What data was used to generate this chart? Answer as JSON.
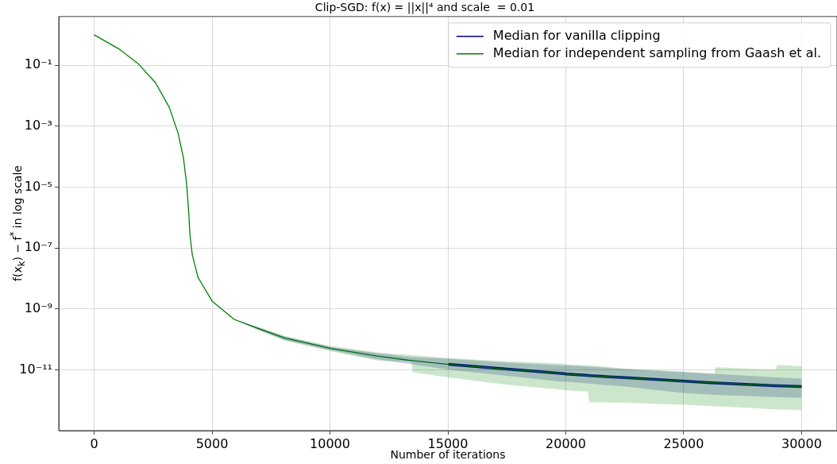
{
  "chart_data": {
    "type": "line",
    "title": "Clip-SGD: f(x) = ||x||⁴ and scale  = 0.01",
    "xlabel": "Number of iterations",
    "ylabel": "f(x$_{k}$) − f$^{*}$ in log scale",
    "x": [
      0,
      1040,
      1880,
      2600,
      3190,
      3560,
      3790,
      3920,
      4010,
      4060,
      4160,
      4400,
      5000,
      5940,
      7000,
      8070,
      10040,
      12000,
      13460,
      13500,
      15020,
      17500,
      19830,
      20030,
      20940,
      21000,
      22500,
      25030,
      26300,
      26350,
      28900,
      28950,
      30000
    ],
    "series": [
      {
        "name": "Median for vanilla clipping",
        "color": "#00008b",
        "values": [
          null,
          null,
          null,
          null,
          null,
          null,
          null,
          null,
          null,
          null,
          null,
          null,
          null,
          null,
          null,
          null,
          null,
          null,
          null,
          null,
          1.5e-11,
          1.05e-11,
          7.6e-12,
          7.2e-12,
          6.5e-12,
          6.4e-12,
          5.5e-12,
          4.2e-12,
          3.7e-12,
          3.7e-12,
          3e-12,
          3e-12,
          2.8e-12
        ],
        "lower": [
          null,
          null,
          null,
          null,
          null,
          null,
          null,
          null,
          null,
          null,
          null,
          null,
          null,
          4.5e-10,
          2e-10,
          9.5e-11,
          4.4e-11,
          2.2e-11,
          1.5e-11,
          1.5e-11,
          1e-11,
          6.3e-12,
          4e-12,
          4e-12,
          3.5e-12,
          3.5e-12,
          2.8e-12,
          1.7e-12,
          1.5e-12,
          1.5e-12,
          1.26e-12,
          1.26e-12,
          1.2e-12
        ],
        "upper": [
          null,
          null,
          null,
          null,
          null,
          null,
          null,
          null,
          null,
          null,
          null,
          null,
          null,
          4.5e-10,
          2.4e-10,
          1.25e-10,
          5.6e-11,
          3.5e-11,
          2.6e-11,
          2.6e-11,
          2.3e-11,
          1.7e-11,
          1.4e-11,
          1.4e-11,
          1.26e-11,
          1.26e-11,
          1.05e-11,
          8.3e-12,
          7.4e-12,
          7.4e-12,
          5.6e-12,
          5.6e-12,
          5.1e-12
        ]
      },
      {
        "name": "Median for independent sampling from Gaash et al.",
        "color": "#008000",
        "values": [
          1,
          0.35,
          0.11,
          0.027,
          0.0041,
          0.00059,
          8.7e-05,
          1.3e-05,
          1.5e-06,
          2.8e-07,
          6.2e-08,
          1.1e-08,
          1.8e-09,
          4.5e-10,
          2.2e-10,
          1.1e-10,
          5e-11,
          2.8e-11,
          2e-11,
          2e-11,
          1.5e-11,
          1.05e-11,
          7.6e-12,
          7.2e-12,
          6.5e-12,
          6.4e-12,
          5.5e-12,
          4.2e-12,
          3.7e-12,
          3.7e-12,
          3e-12,
          3e-12,
          2.8e-12
        ],
        "lower": [
          null,
          null,
          null,
          null,
          null,
          null,
          null,
          null,
          null,
          null,
          null,
          null,
          null,
          4.5e-10,
          1.9e-10,
          9e-11,
          4e-11,
          2e-11,
          1.8e-11,
          8.3e-12,
          5.6e-12,
          3.2e-12,
          2.2e-12,
          2.1e-12,
          1.9e-12,
          8.5e-13,
          8.3e-13,
          7e-13,
          6.3e-13,
          6.3e-13,
          5e-13,
          5e-13,
          4.8e-13
        ],
        "upper": [
          null,
          null,
          null,
          null,
          null,
          null,
          null,
          null,
          null,
          null,
          null,
          null,
          null,
          4.5e-10,
          2.5e-10,
          1.3e-10,
          6e-11,
          3.7e-11,
          3e-11,
          3e-11,
          2.4e-11,
          1.9e-11,
          1.6e-11,
          1.5e-11,
          1.4e-11,
          1.4e-11,
          1.1e-11,
          8.7e-12,
          7.4e-12,
          1.2e-11,
          1e-11,
          1.45e-11,
          1.3e-11
        ]
      }
    ],
    "log": "y",
    "xlim": [
      -1500,
      31500
    ],
    "xticks": [
      0,
      5000,
      10000,
      15000,
      20000,
      25000,
      30000
    ],
    "ylim": [
      1e-13,
      4
    ],
    "yticks": [
      {
        "value": 0.1,
        "label": "10⁻¹"
      },
      {
        "value": 0.001,
        "label": "10⁻³"
      },
      {
        "value": 1e-05,
        "label": "10⁻⁵"
      },
      {
        "value": 1e-07,
        "label": "10⁻⁷"
      },
      {
        "value": 1e-09,
        "label": "10⁻⁹"
      },
      {
        "value": 1e-11,
        "label": "10⁻¹¹"
      }
    ],
    "grid": true,
    "legend": "top right",
    "marker": "none",
    "line_style": "solid"
  }
}
